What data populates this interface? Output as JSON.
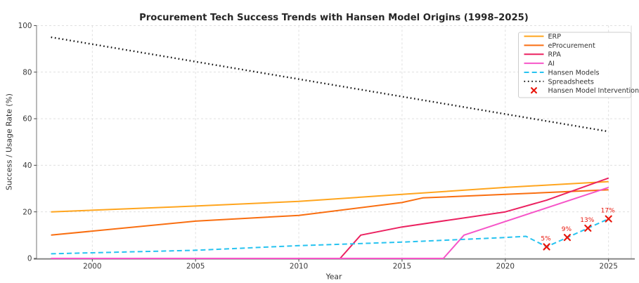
{
  "chart_data": {
    "type": "line",
    "title": "Procurement Tech Success Trends with Hansen Model Origins (1998–2025)",
    "xlabel": "Year",
    "ylabel": "Success / Usage Rate (%)",
    "xlim": [
      1997.3,
      2026.1
    ],
    "ylim": [
      0,
      100
    ],
    "xticks": [
      2000,
      2005,
      2010,
      2015,
      2020,
      2025
    ],
    "yticks": [
      0,
      20,
      40,
      60,
      80,
      100
    ],
    "grid": true,
    "legend_position": "upper right",
    "series": [
      {
        "name": "ERP",
        "color": "#FFA51E",
        "style": "solid",
        "points": [
          [
            1998,
            20
          ],
          [
            2005,
            22.5
          ],
          [
            2010,
            24.5
          ],
          [
            2015,
            27.5
          ],
          [
            2020,
            30.5
          ],
          [
            2025,
            33
          ]
        ]
      },
      {
        "name": "eProcurement",
        "color": "#F96E10",
        "style": "solid",
        "points": [
          [
            1998,
            10
          ],
          [
            2005,
            16
          ],
          [
            2010,
            18.5
          ],
          [
            2015,
            24
          ],
          [
            2016,
            26
          ],
          [
            2020,
            27.5
          ],
          [
            2025,
            29.5
          ]
        ]
      },
      {
        "name": "RPA",
        "color": "#EB2160",
        "style": "solid",
        "points": [
          [
            1998,
            0
          ],
          [
            2012,
            0
          ],
          [
            2013,
            10
          ],
          [
            2015,
            13.5
          ],
          [
            2020,
            20
          ],
          [
            2022,
            25
          ],
          [
            2025,
            34.5
          ]
        ]
      },
      {
        "name": "AI",
        "color": "#F655C8",
        "style": "solid",
        "points": [
          [
            1998,
            0
          ],
          [
            2017,
            0
          ],
          [
            2018,
            10
          ],
          [
            2025,
            30.5
          ]
        ]
      },
      {
        "name": "Hansen Models",
        "color": "#27C3F0",
        "style": "dashed",
        "points": [
          [
            1998,
            2
          ],
          [
            2005,
            3.5
          ],
          [
            2010,
            5.5
          ],
          [
            2015,
            7
          ],
          [
            2020,
            9
          ],
          [
            2021,
            9.5
          ],
          [
            2022,
            5
          ],
          [
            2023,
            9
          ],
          [
            2024,
            13
          ],
          [
            2025,
            17
          ]
        ]
      },
      {
        "name": "Spreadsheets",
        "color": "#111111",
        "style": "dotted",
        "points": [
          [
            1998,
            95
          ],
          [
            2025,
            54.5
          ]
        ]
      }
    ],
    "markers": {
      "name": "Hansen Model Interventions",
      "color": "#E8160C",
      "shape": "x",
      "points": [
        [
          2022,
          5
        ],
        [
          2023,
          9
        ],
        [
          2024,
          13
        ],
        [
          2025,
          17
        ]
      ],
      "labels": [
        "5%",
        "9%",
        "13%",
        "17%"
      ]
    },
    "palette": {
      "grid_color": "#dcdcdc",
      "spine_color": "#808080",
      "minor_spine_color": "#d8d8d8",
      "tick_color": "#444444",
      "text_color": "#262626",
      "legend_border": "#cccccc",
      "legend_bg": "#ffffff",
      "annotation_color": "#e8160c",
      "background": "#ffffff"
    }
  }
}
